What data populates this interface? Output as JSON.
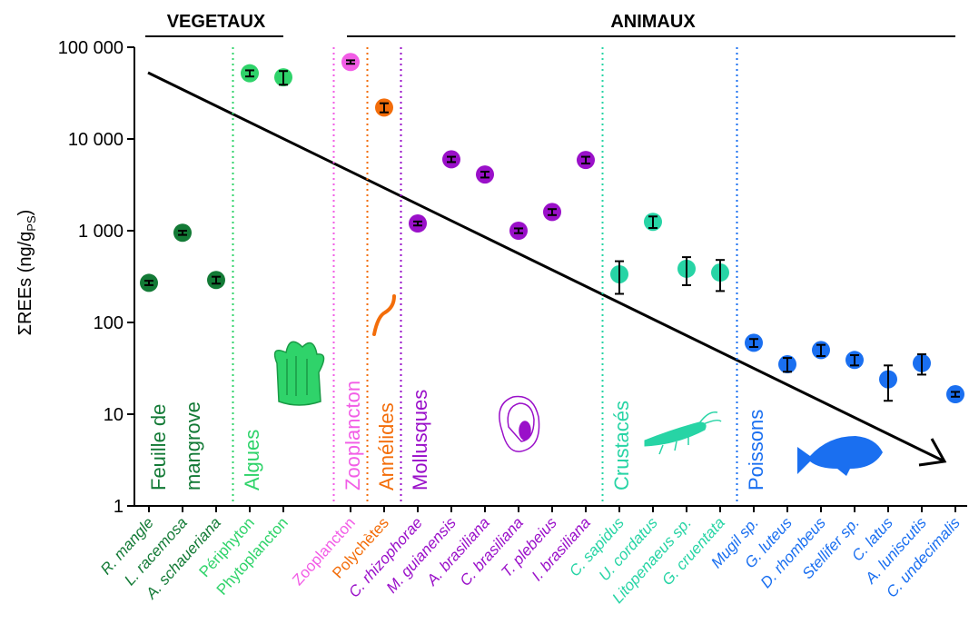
{
  "chart_data": {
    "type": "scatter",
    "y_label": "ΣREEs (ng/g",
    "y_label_sub": "PS",
    "y_label_end": ")",
    "categories": [
      "R. mangle",
      "L. racemosa",
      "A. schaueriana",
      "Périphyton",
      "Phytoplancton",
      null,
      "Zooplancton",
      "Polychètes",
      "C. rhizophorae",
      "M. guianensis",
      "A. brasiliana",
      "C. brasiliana",
      "T. plebeius",
      "I. brasiliana",
      "C. sapidus",
      "U. cordatus",
      "Litopenaeus sp.",
      "G. cruentata",
      "Mugil sp.",
      "G. luteus",
      "D. rhombeus",
      "Stellifer sp.",
      "C. latus",
      "A. luniscutis",
      "C. undecimalis"
    ],
    "italic": [
      true,
      true,
      true,
      false,
      false,
      false,
      false,
      false,
      true,
      true,
      true,
      true,
      true,
      true,
      true,
      true,
      true,
      true,
      true,
      true,
      true,
      true,
      true,
      true,
      true
    ],
    "values": [
      270,
      950,
      290,
      52000,
      47000,
      null,
      69000,
      22000,
      1200,
      6000,
      4100,
      1000,
      1600,
      5900,
      335,
      1250,
      385,
      350,
      60,
      35,
      50,
      39,
      24,
      36,
      16.5
    ],
    "errors": [
      15,
      50,
      25,
      4000,
      8000,
      null,
      3000,
      2500,
      60,
      400,
      300,
      60,
      120,
      500,
      130,
      180,
      130,
      130,
      6,
      6,
      7,
      5,
      10,
      9,
      1
    ],
    "groups": [
      {
        "name": [
          "Feuille de",
          "mangrove"
        ],
        "color": "#137a36",
        "start": 0,
        "end": 2
      },
      {
        "name": [
          "Algues"
        ],
        "color": "#2fd36a",
        "start": 3,
        "end": 4
      },
      {
        "name": [
          "Zooplancton"
        ],
        "color": "#f25de6",
        "start": 6,
        "end": 6
      },
      {
        "name": [
          "Annélides"
        ],
        "color": "#f36d0a",
        "start": 7,
        "end": 7
      },
      {
        "name": [
          "Mollusques"
        ],
        "color": "#9a10c9",
        "start": 8,
        "end": 13
      },
      {
        "name": [
          "Crustacés"
        ],
        "color": "#27d4a5",
        "start": 14,
        "end": 17
      },
      {
        "name": [
          "Poissons"
        ],
        "color": "#1a6ff0",
        "start": 18,
        "end": 24
      }
    ],
    "headers": [
      {
        "text": "VEGETAUX",
        "start": 0,
        "end": 4
      },
      {
        "text": "ANIMAUX",
        "start": 6,
        "end": 24
      }
    ],
    "log_y": true,
    "ylim": [
      1,
      100000
    ],
    "yticks": [
      1,
      10,
      100,
      {
        "value": 1000,
        "label": "1 000"
      },
      {
        "value": 10000,
        "label": "10 000"
      },
      {
        "value": 100000,
        "label": "100 000"
      }
    ]
  }
}
